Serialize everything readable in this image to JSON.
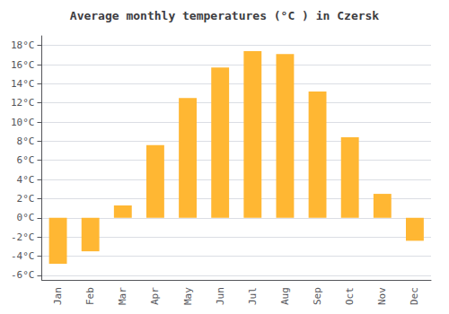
{
  "chart_data": {
    "type": "bar",
    "title": "Average monthly temperatures (°C ) in Czersk",
    "categories": [
      "Jan",
      "Feb",
      "Mar",
      "Apr",
      "May",
      "Jun",
      "Jul",
      "Aug",
      "Sep",
      "Oct",
      "Nov",
      "Dec"
    ],
    "values": [
      -4.8,
      -3.5,
      1.3,
      7.6,
      12.5,
      15.7,
      17.4,
      17.1,
      13.2,
      8.4,
      2.5,
      -2.4
    ],
    "color": "#FFB733",
    "ylim": [
      -6.5,
      19
    ],
    "yticks": [
      {
        "value": -6,
        "label": "-6°C"
      },
      {
        "value": -4,
        "label": "-4°C"
      },
      {
        "value": -2,
        "label": "-2°C"
      },
      {
        "value": 0,
        "label": "0°C"
      },
      {
        "value": 2,
        "label": "2°C"
      },
      {
        "value": 4,
        "label": "4°C"
      },
      {
        "value": 6,
        "label": "6°C"
      },
      {
        "value": 8,
        "label": "8°C"
      },
      {
        "value": 10,
        "label": "10°C"
      },
      {
        "value": 12,
        "label": "12°C"
      },
      {
        "value": 14,
        "label": "14°C"
      },
      {
        "value": 16,
        "label": "16°C"
      },
      {
        "value": 18,
        "label": "18°C"
      }
    ],
    "grid": true
  }
}
